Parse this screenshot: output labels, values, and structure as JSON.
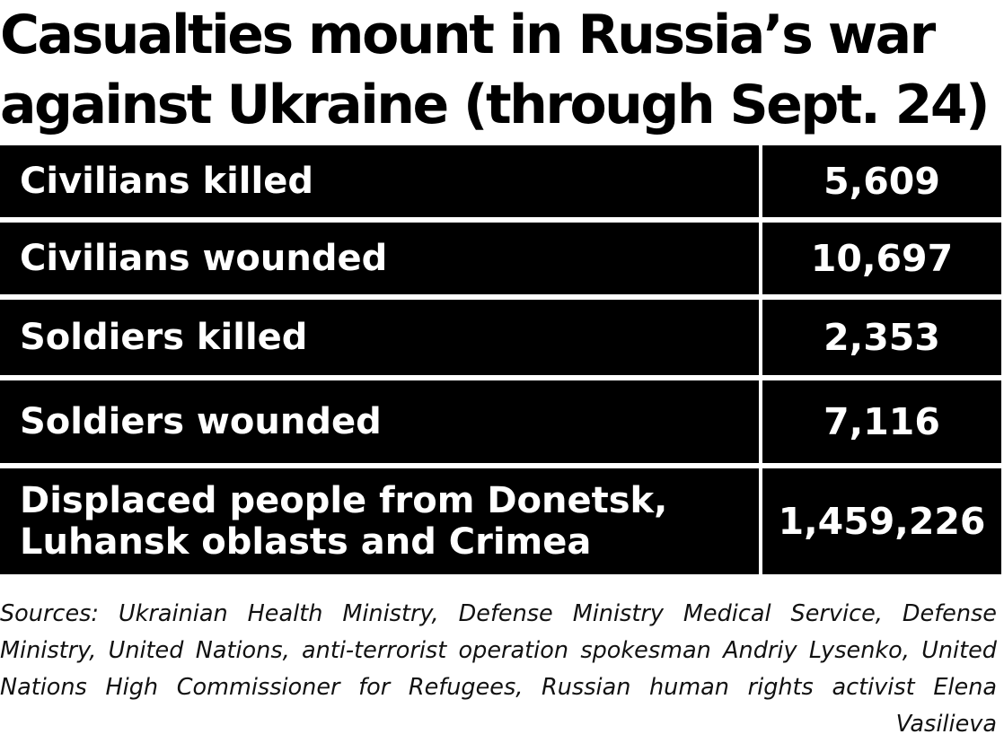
{
  "title": "Casualties mount in Russia’s war\nagainst Ukraine (through Sept. 24)",
  "chart_data": {
    "type": "table",
    "title": "Casualties mount in Russia’s war against Ukraine (through Sept. 24)",
    "columns": [
      "",
      ""
    ],
    "rows": [
      {
        "label": "Civilians killed",
        "value": "5,609"
      },
      {
        "label": "Civilians wounded",
        "value": "10,697"
      },
      {
        "label": "Soldiers killed",
        "value": "2,353"
      },
      {
        "label": "Soldiers wounded",
        "value": "7,116"
      },
      {
        "label": "Displaced people from Donetsk,\nLuhansk oblasts and Crimea",
        "value": "1,459,226"
      }
    ]
  },
  "source": "Sources: Ukrainian Health Ministry, Defense Ministry Medical Service, Defense Ministry, United Nations, anti-terrorist operation spokesman Andriy Lysenko, United Nations High Commissioner for Refugees, Russian human rights activist Elena Vasilieva",
  "colors": {
    "cell_background": "#000000",
    "cell_text": "#ffffff",
    "page_background": "#ffffff"
  }
}
